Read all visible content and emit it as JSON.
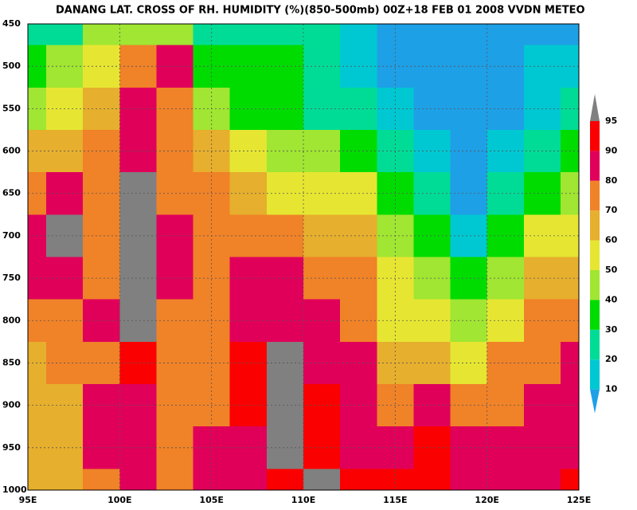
{
  "chart_data": {
    "type": "contour",
    "title": "DANANG LAT. CROSS OF RH. HUMIDITY (%)(850-500mb) 00Z+18 FEB 01 2008 VVDN METEO",
    "x": [
      95,
      97,
      99,
      101,
      103,
      105,
      107,
      109,
      111,
      113,
      115,
      117,
      119,
      121,
      123,
      125
    ],
    "y": [
      450,
      500,
      550,
      600,
      650,
      700,
      750,
      800,
      850,
      900,
      950,
      1000
    ],
    "z": [
      [
        25,
        28,
        40,
        45,
        40,
        25,
        25,
        25,
        20,
        15,
        8,
        5,
        5,
        5,
        8,
        8
      ],
      [
        35,
        40,
        55,
        75,
        85,
        35,
        30,
        30,
        25,
        15,
        8,
        5,
        5,
        5,
        10,
        10
      ],
      [
        45,
        55,
        65,
        85,
        70,
        45,
        35,
        30,
        25,
        20,
        15,
        8,
        5,
        8,
        15,
        20
      ],
      [
        60,
        65,
        75,
        88,
        70,
        60,
        55,
        40,
        40,
        35,
        25,
        12,
        5,
        12,
        25,
        30
      ],
      [
        75,
        80,
        75,
        96,
        78,
        70,
        65,
        55,
        55,
        50,
        35,
        20,
        8,
        20,
        35,
        45
      ],
      [
        85,
        95,
        78,
        97,
        85,
        78,
        78,
        70,
        65,
        65,
        45,
        30,
        18,
        30,
        50,
        55
      ],
      [
        80,
        85,
        78,
        97,
        85,
        78,
        82,
        80,
        75,
        70,
        50,
        40,
        30,
        45,
        60,
        65
      ],
      [
        70,
        75,
        80,
        96,
        75,
        75,
        88,
        85,
        80,
        75,
        55,
        50,
        40,
        55,
        70,
        75
      ],
      [
        65,
        70,
        75,
        92,
        70,
        70,
        90,
        97,
        85,
        80,
        65,
        60,
        55,
        70,
        75,
        80
      ],
      [
        60,
        65,
        80,
        85,
        72,
        75,
        92,
        97,
        90,
        85,
        70,
        88,
        70,
        78,
        80,
        82
      ],
      [
        60,
        60,
        80,
        85,
        75,
        80,
        85,
        97,
        92,
        88,
        80,
        90,
        80,
        88,
        88,
        88
      ],
      [
        60,
        65,
        75,
        85,
        75,
        80,
        85,
        92,
        96,
        92,
        90,
        90,
        85,
        88,
        88,
        90
      ]
    ],
    "levels": [
      10,
      20,
      30,
      40,
      50,
      60,
      70,
      80,
      90,
      95
    ],
    "colors": [
      "#1ea0e6",
      "#00c8d2",
      "#00dc96",
      "#00dc00",
      "#a0e632",
      "#e6e632",
      "#e6af2d",
      "#f08228",
      "#e0005a",
      "#fa0000",
      "#808080"
    ],
    "xlim": [
      95,
      125
    ],
    "ylim": [
      1000,
      450
    ],
    "xticks": [
      {
        "value": 95,
        "label": "95E"
      },
      {
        "value": 100,
        "label": "100E"
      },
      {
        "value": 105,
        "label": "105E"
      },
      {
        "value": 110,
        "label": "110E"
      },
      {
        "value": 115,
        "label": "115E"
      },
      {
        "value": 120,
        "label": "120E"
      },
      {
        "value": 125,
        "label": "125E"
      }
    ],
    "yticks": [
      450,
      500,
      550,
      600,
      650,
      700,
      750,
      800,
      850,
      900,
      950,
      1000
    ],
    "grid": true
  }
}
